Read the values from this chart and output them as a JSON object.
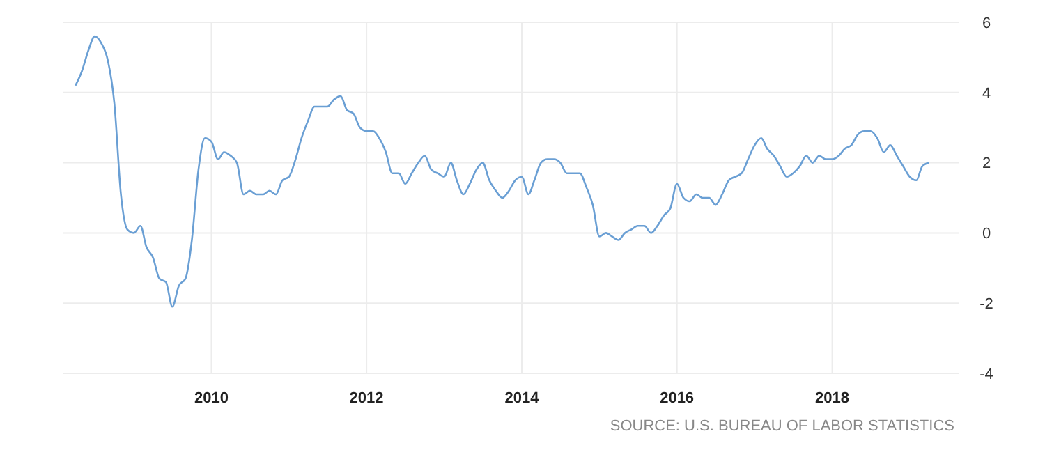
{
  "chart_data": {
    "type": "line",
    "x": [
      "2008-04",
      "2008-05",
      "2008-06",
      "2008-07",
      "2008-08",
      "2008-09",
      "2008-10",
      "2008-11",
      "2008-12",
      "2009-01",
      "2009-02",
      "2009-03",
      "2009-04",
      "2009-05",
      "2009-06",
      "2009-07",
      "2009-08",
      "2009-09",
      "2009-10",
      "2009-11",
      "2009-12",
      "2010-01",
      "2010-02",
      "2010-03",
      "2010-04",
      "2010-05",
      "2010-06",
      "2010-07",
      "2010-08",
      "2010-09",
      "2010-10",
      "2010-11",
      "2010-12",
      "2011-01",
      "2011-02",
      "2011-03",
      "2011-04",
      "2011-05",
      "2011-06",
      "2011-07",
      "2011-08",
      "2011-09",
      "2011-10",
      "2011-11",
      "2011-12",
      "2012-01",
      "2012-02",
      "2012-03",
      "2012-04",
      "2012-05",
      "2012-06",
      "2012-07",
      "2012-08",
      "2012-09",
      "2012-10",
      "2012-11",
      "2012-12",
      "2013-01",
      "2013-02",
      "2013-03",
      "2013-04",
      "2013-05",
      "2013-06",
      "2013-07",
      "2013-08",
      "2013-09",
      "2013-10",
      "2013-11",
      "2013-12",
      "2014-01",
      "2014-02",
      "2014-03",
      "2014-04",
      "2014-05",
      "2014-06",
      "2014-07",
      "2014-08",
      "2014-09",
      "2014-10",
      "2014-11",
      "2014-12",
      "2015-01",
      "2015-02",
      "2015-03",
      "2015-04",
      "2015-05",
      "2015-06",
      "2015-07",
      "2015-08",
      "2015-09",
      "2015-10",
      "2015-11",
      "2015-12",
      "2016-01",
      "2016-02",
      "2016-03",
      "2016-04",
      "2016-05",
      "2016-06",
      "2016-07",
      "2016-08",
      "2016-09",
      "2016-10",
      "2016-11",
      "2016-12",
      "2017-01",
      "2017-02",
      "2017-03",
      "2017-04",
      "2017-05",
      "2017-06",
      "2017-07",
      "2017-08",
      "2017-09",
      "2017-10",
      "2017-11",
      "2017-12",
      "2018-01",
      "2018-02",
      "2018-03",
      "2018-04",
      "2018-05",
      "2018-06",
      "2018-07",
      "2018-08",
      "2018-09",
      "2018-10",
      "2018-11",
      "2018-12",
      "2019-01",
      "2019-02",
      "2019-03",
      "2019-04"
    ],
    "series": [
      {
        "color": "#6a9fd4",
        "values": [
          4.2,
          4.6,
          5.2,
          5.6,
          5.4,
          4.9,
          3.7,
          1.1,
          0.1,
          0.0,
          0.2,
          -0.4,
          -0.7,
          -1.3,
          -1.4,
          -2.1,
          -1.5,
          -1.3,
          -0.2,
          1.8,
          2.7,
          2.6,
          2.1,
          2.3,
          2.2,
          2.0,
          1.1,
          1.2,
          1.1,
          1.1,
          1.2,
          1.1,
          1.5,
          1.6,
          2.1,
          2.7,
          3.2,
          3.6,
          3.6,
          3.6,
          3.8,
          3.9,
          3.5,
          3.4,
          3.0,
          2.9,
          2.9,
          2.7,
          2.3,
          1.7,
          1.7,
          1.4,
          1.7,
          2.0,
          2.2,
          1.8,
          1.7,
          1.6,
          2.0,
          1.5,
          1.1,
          1.4,
          1.8,
          2.0,
          1.5,
          1.2,
          1.0,
          1.2,
          1.5,
          1.6,
          1.1,
          1.5,
          2.0,
          2.1,
          2.1,
          2.0,
          1.7,
          1.7,
          1.7,
          1.3,
          0.8,
          -0.1,
          0.0,
          -0.1,
          -0.2,
          0.0,
          0.1,
          0.2,
          0.2,
          0.0,
          0.2,
          0.5,
          0.7,
          1.4,
          1.0,
          0.9,
          1.1,
          1.0,
          1.0,
          0.8,
          1.1,
          1.5,
          1.6,
          1.7,
          2.1,
          2.5,
          2.7,
          2.4,
          2.2,
          1.9,
          1.6,
          1.7,
          1.9,
          2.2,
          2.0,
          2.2,
          2.1,
          2.1,
          2.2,
          2.4,
          2.5,
          2.8,
          2.9,
          2.9,
          2.7,
          2.3,
          2.5,
          2.2,
          1.9,
          1.6,
          1.5,
          1.9,
          2.0
        ]
      }
    ],
    "xlim": [
      "2008-02",
      "2019-09"
    ],
    "xticks": [
      "2010",
      "2012",
      "2014",
      "2016",
      "2018"
    ],
    "ylim": [
      -4,
      6
    ],
    "yticks": [
      -4,
      -2,
      0,
      2,
      4,
      6
    ],
    "grid": true,
    "annotations": [
      "SOURCE: U.S. BUREAU OF LABOR STATISTICS"
    ]
  }
}
